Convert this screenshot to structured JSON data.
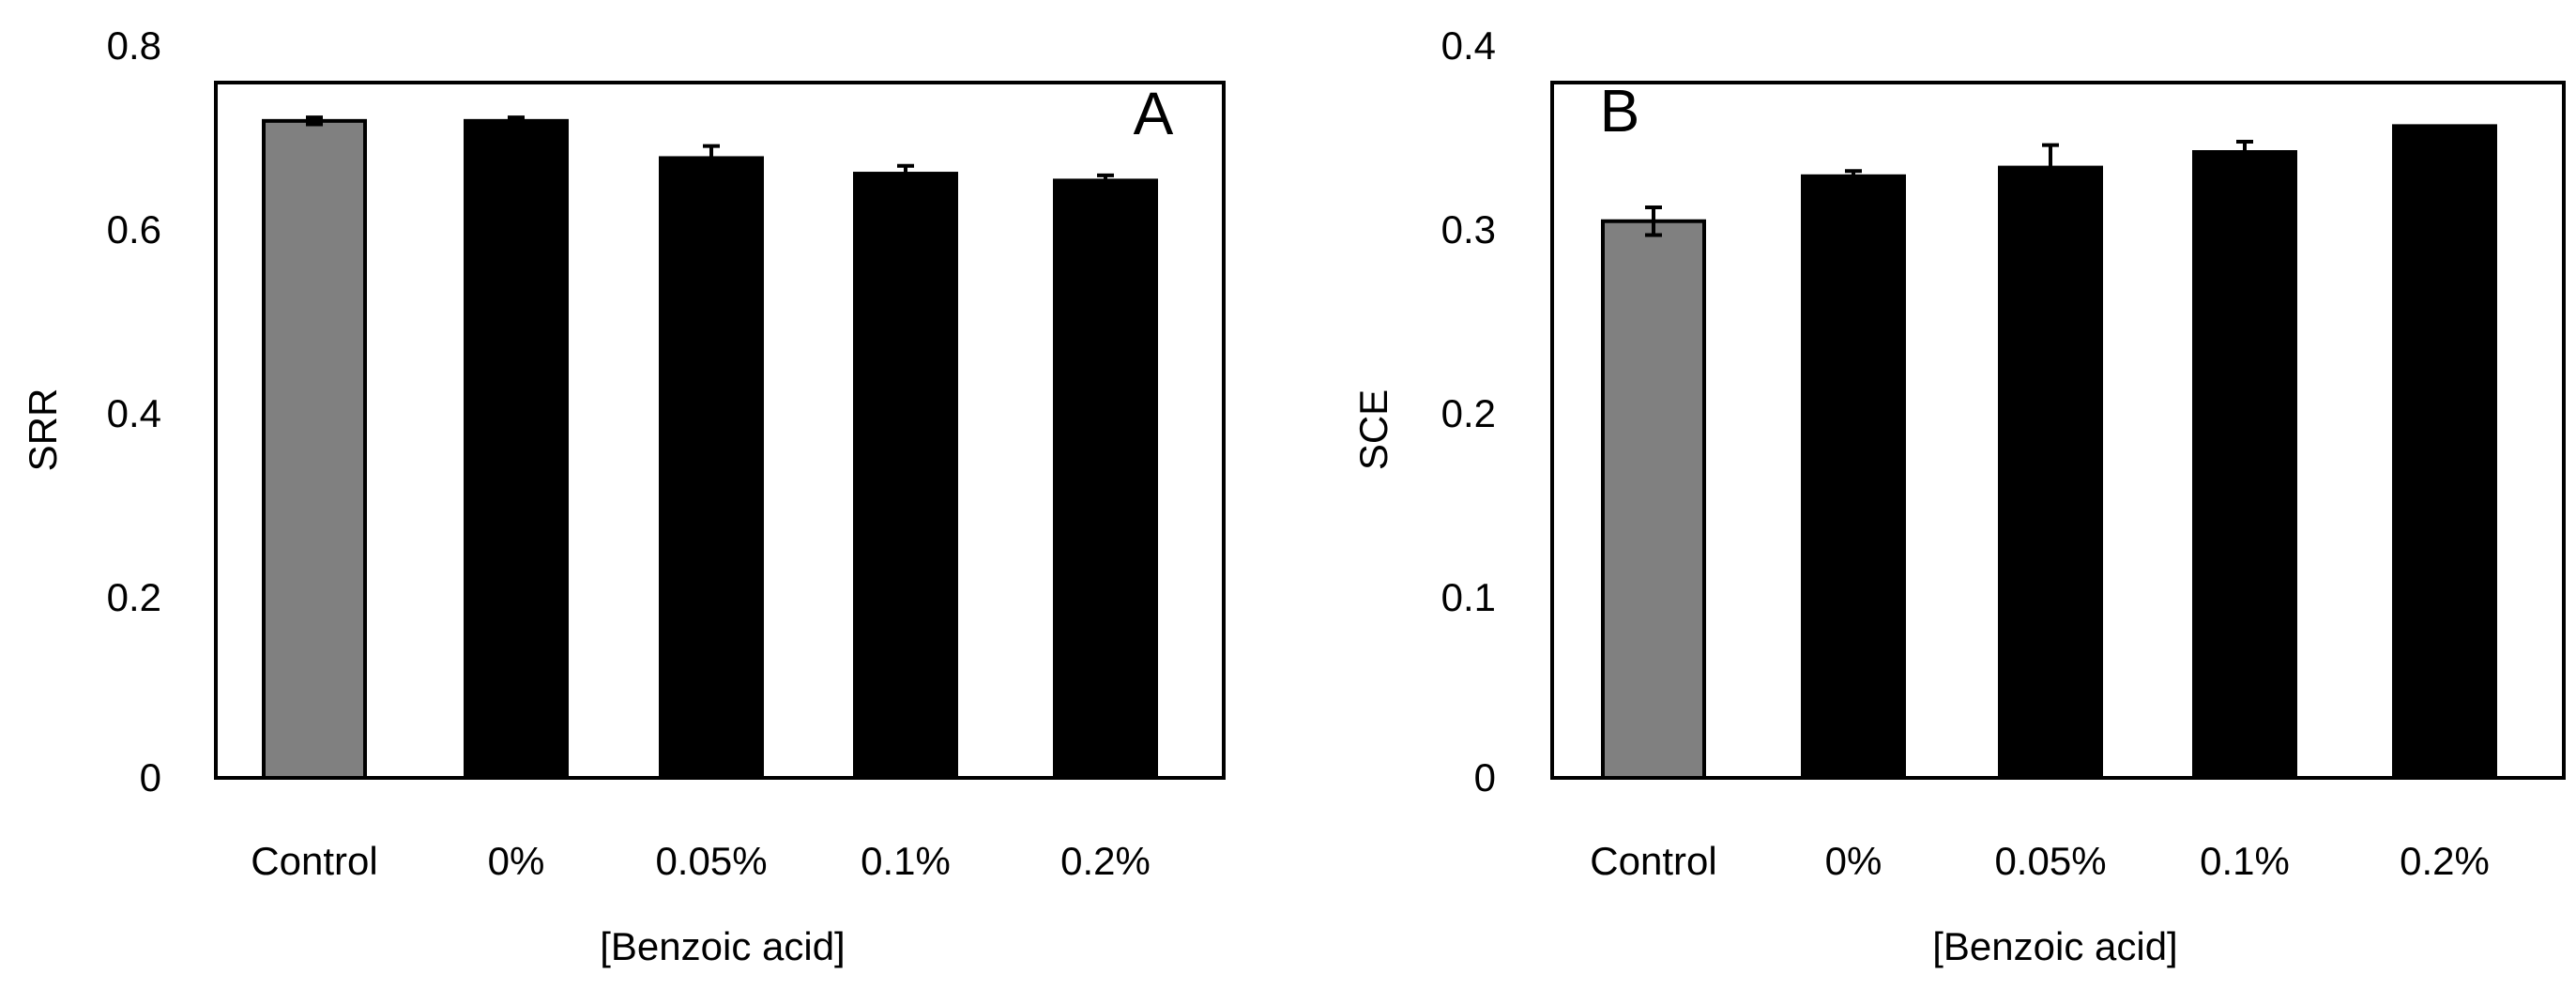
{
  "chart_data": [
    {
      "type": "bar",
      "panel_label": "A",
      "categories": [
        "Control",
        "0%",
        "0.05%",
        "0.1%",
        "0.2%"
      ],
      "values": [
        0.76,
        0.76,
        0.717,
        0.699,
        0.691
      ],
      "errors": [
        0.004,
        0.004,
        0.014,
        0.009,
        0.006
      ],
      "bar_colors": [
        "#808080",
        "#000000",
        "#000000",
        "#000000",
        "#000000"
      ],
      "yticks": [
        "0",
        "0.2",
        "0.4",
        "0.6",
        "0.8"
      ],
      "ylim": [
        0,
        0.8
      ],
      "xlabel": "[Benzoic acid]",
      "ylabel": "SRR",
      "grid": false
    },
    {
      "type": "bar",
      "panel_label": "B",
      "categories": [
        "Control",
        "0%",
        "0.05%",
        "0.1%",
        "0.2%"
      ],
      "values": [
        0.322,
        0.348,
        0.353,
        0.362,
        0.377
      ],
      "errors": [
        0.008,
        0.003,
        0.013,
        0.006,
        0.0
      ],
      "bar_colors": [
        "#808080",
        "#000000",
        "#000000",
        "#000000",
        "#000000"
      ],
      "yticks": [
        "0",
        "0.1",
        "0.2",
        "0.3",
        "0.4"
      ],
      "ylim": [
        0,
        0.4
      ],
      "xlabel": "[Benzoic acid]",
      "ylabel": "SCE",
      "grid": false
    }
  ]
}
